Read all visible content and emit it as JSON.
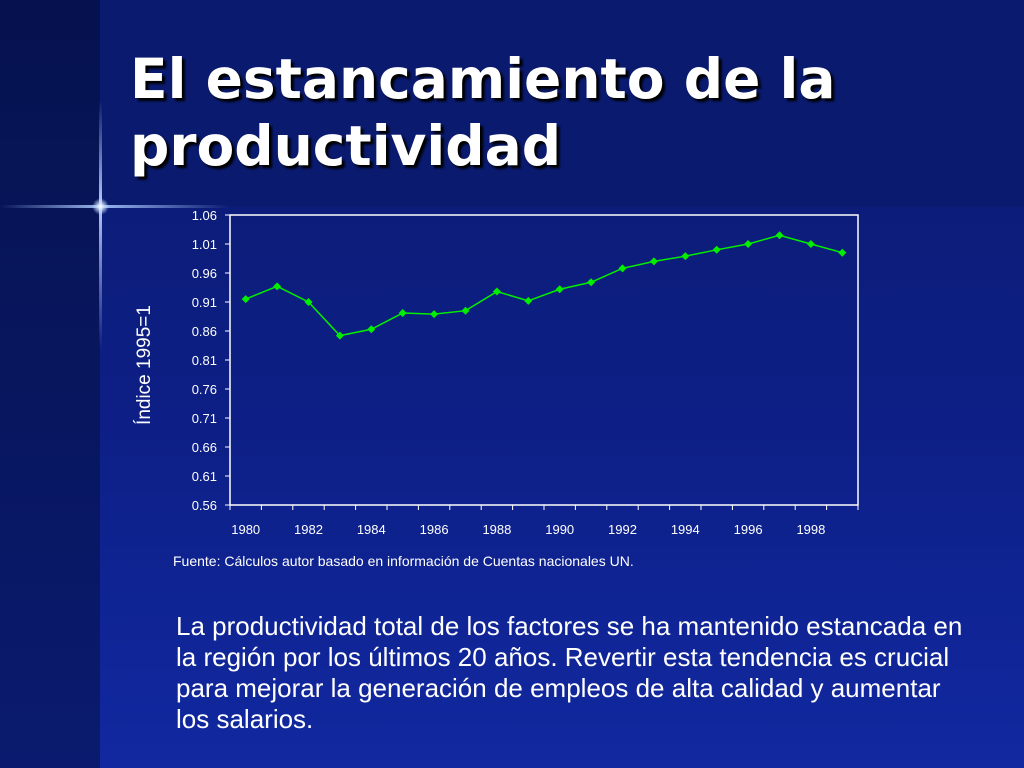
{
  "slide": {
    "title": "El estancamiento de la productividad",
    "source": "Fuente: Cálculos autor basado en información de Cuentas nacionales UN.",
    "body": "La productividad total de los factores se ha mantenido estancada en la región por los últimos 20 años. Revertir esta tendencia es crucial para mejorar la generación de empleos de alta calidad y aumentar los salarios."
  },
  "colors": {
    "background": "#0d1f86",
    "title_band": "#0a1a6e",
    "series_line": "#00ee00",
    "series_marker": "#00ee00",
    "text": "#ffffff"
  },
  "chart_data": {
    "type": "line",
    "title": "",
    "xlabel": "",
    "ylabel": "Índice 1995=1",
    "xlim": [
      1980,
      1999
    ],
    "ylim": [
      0.56,
      1.06
    ],
    "yticks": [
      "0.56",
      "0.61",
      "0.66",
      "0.71",
      "0.76",
      "0.81",
      "0.86",
      "0.91",
      "0.96",
      "1.01",
      "1.06"
    ],
    "xticks": [
      "1980",
      "1982",
      "1984",
      "1986",
      "1988",
      "1990",
      "1992",
      "1994",
      "1996",
      "1998"
    ],
    "grid": false,
    "legend": "none",
    "series": [
      {
        "x": [
          1980,
          1981,
          1982,
          1983,
          1984,
          1985,
          1986,
          1987,
          1988,
          1989,
          1990,
          1991,
          1992,
          1993,
          1994,
          1995,
          1996,
          1997,
          1998,
          1999
        ],
        "values": [
          0.915,
          0.937,
          0.91,
          0.852,
          0.863,
          0.891,
          0.889,
          0.895,
          0.928,
          0.912,
          0.932,
          0.944,
          0.968,
          0.98,
          0.989,
          1.0,
          1.01,
          1.025,
          1.01,
          0.995
        ]
      }
    ]
  }
}
